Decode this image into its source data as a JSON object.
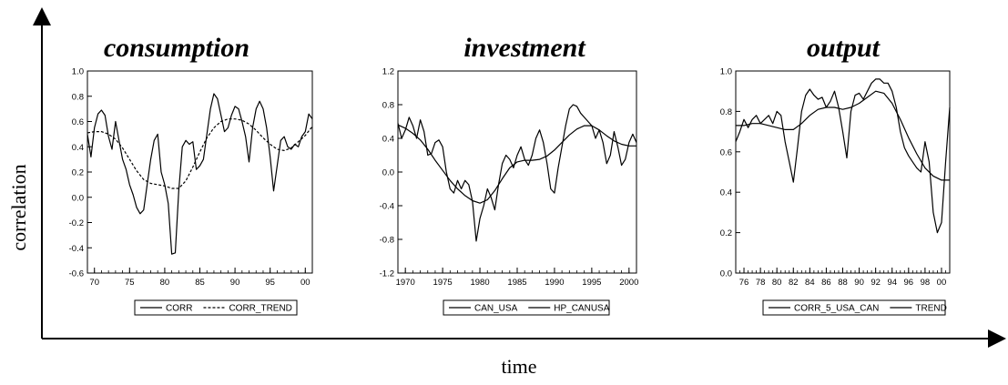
{
  "figure": {
    "ylabel": "correlation",
    "xlabel": "time"
  },
  "chart_data": [
    {
      "type": "line",
      "title": "consumption",
      "xlim": [
        1969,
        2001
      ],
      "ylim": [
        -0.6,
        1.0
      ],
      "xticks": [
        1970,
        1975,
        1980,
        1985,
        1990,
        1995,
        2000
      ],
      "xtick_labels": [
        "70",
        "75",
        "80",
        "85",
        "90",
        "95",
        "00"
      ],
      "yticks": [
        -0.6,
        -0.4,
        -0.2,
        0.0,
        0.2,
        0.4,
        0.6,
        0.8,
        1.0
      ],
      "ytick_labels": [
        "-0.6",
        "-0.4",
        "-0.2",
        "0.0",
        "0.2",
        "0.4",
        "0.6",
        "0.8",
        "1.0"
      ],
      "series": [
        {
          "name": "CORR",
          "dash": "solid",
          "x": [
            1969.0,
            1969.5,
            1970.0,
            1970.5,
            1971.0,
            1971.5,
            1972.0,
            1972.5,
            1973.0,
            1973.5,
            1974.0,
            1974.5,
            1975.0,
            1975.5,
            1976.0,
            1976.5,
            1977.0,
            1977.5,
            1978.0,
            1978.5,
            1979.0,
            1979.5,
            1980.0,
            1980.5,
            1981.0,
            1981.5,
            1982.0,
            1982.5,
            1983.0,
            1983.5,
            1984.0,
            1984.5,
            1985.0,
            1985.5,
            1986.0,
            1986.5,
            1987.0,
            1987.5,
            1988.0,
            1988.5,
            1989.0,
            1989.5,
            1990.0,
            1990.5,
            1991.0,
            1991.5,
            1992.0,
            1992.5,
            1993.0,
            1993.5,
            1994.0,
            1994.5,
            1995.0,
            1995.5,
            1996.0,
            1996.5,
            1997.0,
            1997.5,
            1998.0,
            1998.5,
            1999.0,
            1999.5,
            2000.0,
            2000.5,
            2001.0
          ],
          "y": [
            0.5,
            0.32,
            0.55,
            0.66,
            0.69,
            0.65,
            0.48,
            0.38,
            0.6,
            0.45,
            0.3,
            0.22,
            0.1,
            0.02,
            -0.08,
            -0.13,
            -0.1,
            0.1,
            0.3,
            0.45,
            0.5,
            0.2,
            0.1,
            -0.05,
            -0.45,
            -0.44,
            0.05,
            0.4,
            0.45,
            0.42,
            0.44,
            0.22,
            0.25,
            0.3,
            0.5,
            0.7,
            0.82,
            0.78,
            0.65,
            0.52,
            0.55,
            0.65,
            0.72,
            0.7,
            0.6,
            0.48,
            0.28,
            0.55,
            0.7,
            0.76,
            0.7,
            0.55,
            0.32,
            0.05,
            0.25,
            0.45,
            0.48,
            0.4,
            0.38,
            0.42,
            0.4,
            0.48,
            0.52,
            0.66,
            0.62
          ]
        },
        {
          "name": "CORR_TREND",
          "dash": "dashed",
          "x": [
            1969,
            1970,
            1971,
            1972,
            1973,
            1974,
            1975,
            1976,
            1977,
            1978,
            1979,
            1980,
            1981,
            1982,
            1983,
            1984,
            1985,
            1986,
            1987,
            1988,
            1989,
            1990,
            1991,
            1992,
            1993,
            1994,
            1995,
            1996,
            1997,
            1998,
            1999,
            2000,
            2001
          ],
          "y": [
            0.51,
            0.52,
            0.52,
            0.5,
            0.46,
            0.39,
            0.3,
            0.21,
            0.14,
            0.11,
            0.1,
            0.09,
            0.07,
            0.07,
            0.13,
            0.24,
            0.36,
            0.47,
            0.55,
            0.6,
            0.62,
            0.62,
            0.61,
            0.58,
            0.53,
            0.47,
            0.42,
            0.38,
            0.37,
            0.39,
            0.44,
            0.49,
            0.56
          ]
        }
      ]
    },
    {
      "type": "line",
      "title": "investment",
      "xlim": [
        1969,
        2001
      ],
      "ylim": [
        -1.2,
        1.2
      ],
      "xticks": [
        1970,
        1975,
        1980,
        1985,
        1990,
        1995,
        2000
      ],
      "xtick_labels": [
        "1970",
        "1975",
        "1980",
        "1985",
        "1990",
        "1995",
        "2000"
      ],
      "yticks": [
        -1.2,
        -0.8,
        -0.4,
        0.0,
        0.4,
        0.8,
        1.2
      ],
      "ytick_labels": [
        "-1.2",
        "-0.8",
        "-0.4",
        "0.0",
        "0.4",
        "0.8",
        "1.2"
      ],
      "series": [
        {
          "name": "CAN_USA",
          "dash": "solid",
          "x": [
            1969.0,
            1969.5,
            1970.0,
            1970.5,
            1971.0,
            1971.5,
            1972.0,
            1972.5,
            1973.0,
            1973.5,
            1974.0,
            1974.5,
            1975.0,
            1975.5,
            1976.0,
            1976.5,
            1977.0,
            1977.5,
            1978.0,
            1978.5,
            1979.0,
            1979.5,
            1980.0,
            1980.5,
            1981.0,
            1981.5,
            1982.0,
            1982.5,
            1983.0,
            1983.5,
            1984.0,
            1984.5,
            1985.0,
            1985.5,
            1986.0,
            1986.5,
            1987.0,
            1987.5,
            1988.0,
            1988.5,
            1989.0,
            1989.5,
            1990.0,
            1990.5,
            1991.0,
            1991.5,
            1992.0,
            1992.5,
            1993.0,
            1993.5,
            1994.0,
            1994.5,
            1995.0,
            1995.5,
            1996.0,
            1996.5,
            1997.0,
            1997.5,
            1998.0,
            1998.5,
            1999.0,
            1999.5,
            2000.0,
            2000.5,
            2001.0
          ],
          "y": [
            0.58,
            0.4,
            0.5,
            0.65,
            0.55,
            0.4,
            0.62,
            0.48,
            0.2,
            0.22,
            0.35,
            0.38,
            0.3,
            0.0,
            -0.2,
            -0.25,
            -0.1,
            -0.2,
            -0.1,
            -0.15,
            -0.35,
            -0.82,
            -0.55,
            -0.4,
            -0.2,
            -0.3,
            -0.45,
            -0.15,
            0.1,
            0.2,
            0.15,
            0.05,
            0.2,
            0.3,
            0.15,
            0.08,
            0.2,
            0.4,
            0.5,
            0.35,
            0.1,
            -0.2,
            -0.25,
            0.05,
            0.3,
            0.55,
            0.75,
            0.8,
            0.78,
            0.7,
            0.65,
            0.6,
            0.55,
            0.4,
            0.5,
            0.35,
            0.1,
            0.2,
            0.48,
            0.3,
            0.08,
            0.15,
            0.35,
            0.45,
            0.35
          ]
        },
        {
          "name": "HP_CANUSA",
          "dash": "solid",
          "x": [
            1969,
            1970,
            1971,
            1972,
            1973,
            1974,
            1975,
            1976,
            1977,
            1978,
            1979,
            1980,
            1981,
            1982,
            1983,
            1984,
            1985,
            1986,
            1987,
            1988,
            1989,
            1990,
            1991,
            1992,
            1993,
            1994,
            1995,
            1996,
            1997,
            1998,
            1999,
            2000,
            2001
          ],
          "y": [
            0.56,
            0.52,
            0.46,
            0.38,
            0.27,
            0.14,
            0.02,
            -0.1,
            -0.2,
            -0.28,
            -0.34,
            -0.37,
            -0.33,
            -0.22,
            -0.08,
            0.05,
            0.12,
            0.14,
            0.14,
            0.15,
            0.19,
            0.26,
            0.35,
            0.44,
            0.51,
            0.55,
            0.55,
            0.5,
            0.43,
            0.37,
            0.33,
            0.31,
            0.31
          ]
        }
      ]
    },
    {
      "type": "line",
      "title": "output",
      "xlim": [
        1975,
        2001
      ],
      "ylim": [
        0.0,
        1.0
      ],
      "xticks": [
        1976,
        1978,
        1980,
        1982,
        1984,
        1986,
        1988,
        1990,
        1992,
        1994,
        1996,
        1998,
        2000
      ],
      "xtick_labels": [
        "76",
        "78",
        "80",
        "82",
        "84",
        "86",
        "88",
        "90",
        "92",
        "94",
        "96",
        "98",
        "00"
      ],
      "yticks": [
        0.0,
        0.2,
        0.4,
        0.6,
        0.8,
        1.0
      ],
      "ytick_labels": [
        "0.0",
        "0.2",
        "0.4",
        "0.6",
        "0.8",
        "1.0"
      ],
      "series": [
        {
          "name": "CORR_5_USA_CAN",
          "dash": "solid",
          "x": [
            1975.0,
            1975.5,
            1976.0,
            1976.5,
            1977.0,
            1977.5,
            1978.0,
            1978.5,
            1979.0,
            1979.5,
            1980.0,
            1980.5,
            1981.0,
            1981.5,
            1982.0,
            1982.5,
            1983.0,
            1983.5,
            1984.0,
            1984.5,
            1985.0,
            1985.5,
            1986.0,
            1986.5,
            1987.0,
            1987.5,
            1988.0,
            1988.5,
            1989.0,
            1989.5,
            1990.0,
            1990.5,
            1991.0,
            1991.5,
            1992.0,
            1992.5,
            1993.0,
            1993.5,
            1994.0,
            1994.5,
            1995.0,
            1995.5,
            1996.0,
            1996.5,
            1997.0,
            1997.5,
            1998.0,
            1998.5,
            1999.0,
            1999.5,
            2000.0,
            2000.5,
            2001.0
          ],
          "y": [
            0.65,
            0.7,
            0.76,
            0.72,
            0.76,
            0.78,
            0.74,
            0.76,
            0.78,
            0.74,
            0.8,
            0.78,
            0.65,
            0.55,
            0.45,
            0.62,
            0.8,
            0.88,
            0.91,
            0.88,
            0.86,
            0.87,
            0.82,
            0.85,
            0.9,
            0.82,
            0.7,
            0.57,
            0.8,
            0.88,
            0.89,
            0.86,
            0.9,
            0.94,
            0.96,
            0.96,
            0.94,
            0.94,
            0.9,
            0.82,
            0.7,
            0.62,
            0.58,
            0.55,
            0.52,
            0.5,
            0.65,
            0.55,
            0.3,
            0.2,
            0.25,
            0.55,
            0.82
          ]
        },
        {
          "name": "TREND",
          "dash": "solid",
          "x": [
            1975,
            1976,
            1977,
            1978,
            1979,
            1980,
            1981,
            1982,
            1983,
            1984,
            1985,
            1986,
            1987,
            1988,
            1989,
            1990,
            1991,
            1992,
            1993,
            1994,
            1995,
            1996,
            1997,
            1998,
            1999,
            2000,
            2001
          ],
          "y": [
            0.73,
            0.73,
            0.74,
            0.74,
            0.73,
            0.72,
            0.71,
            0.71,
            0.74,
            0.78,
            0.81,
            0.82,
            0.82,
            0.81,
            0.82,
            0.84,
            0.87,
            0.9,
            0.89,
            0.84,
            0.76,
            0.67,
            0.59,
            0.52,
            0.48,
            0.46,
            0.46
          ]
        }
      ]
    }
  ]
}
